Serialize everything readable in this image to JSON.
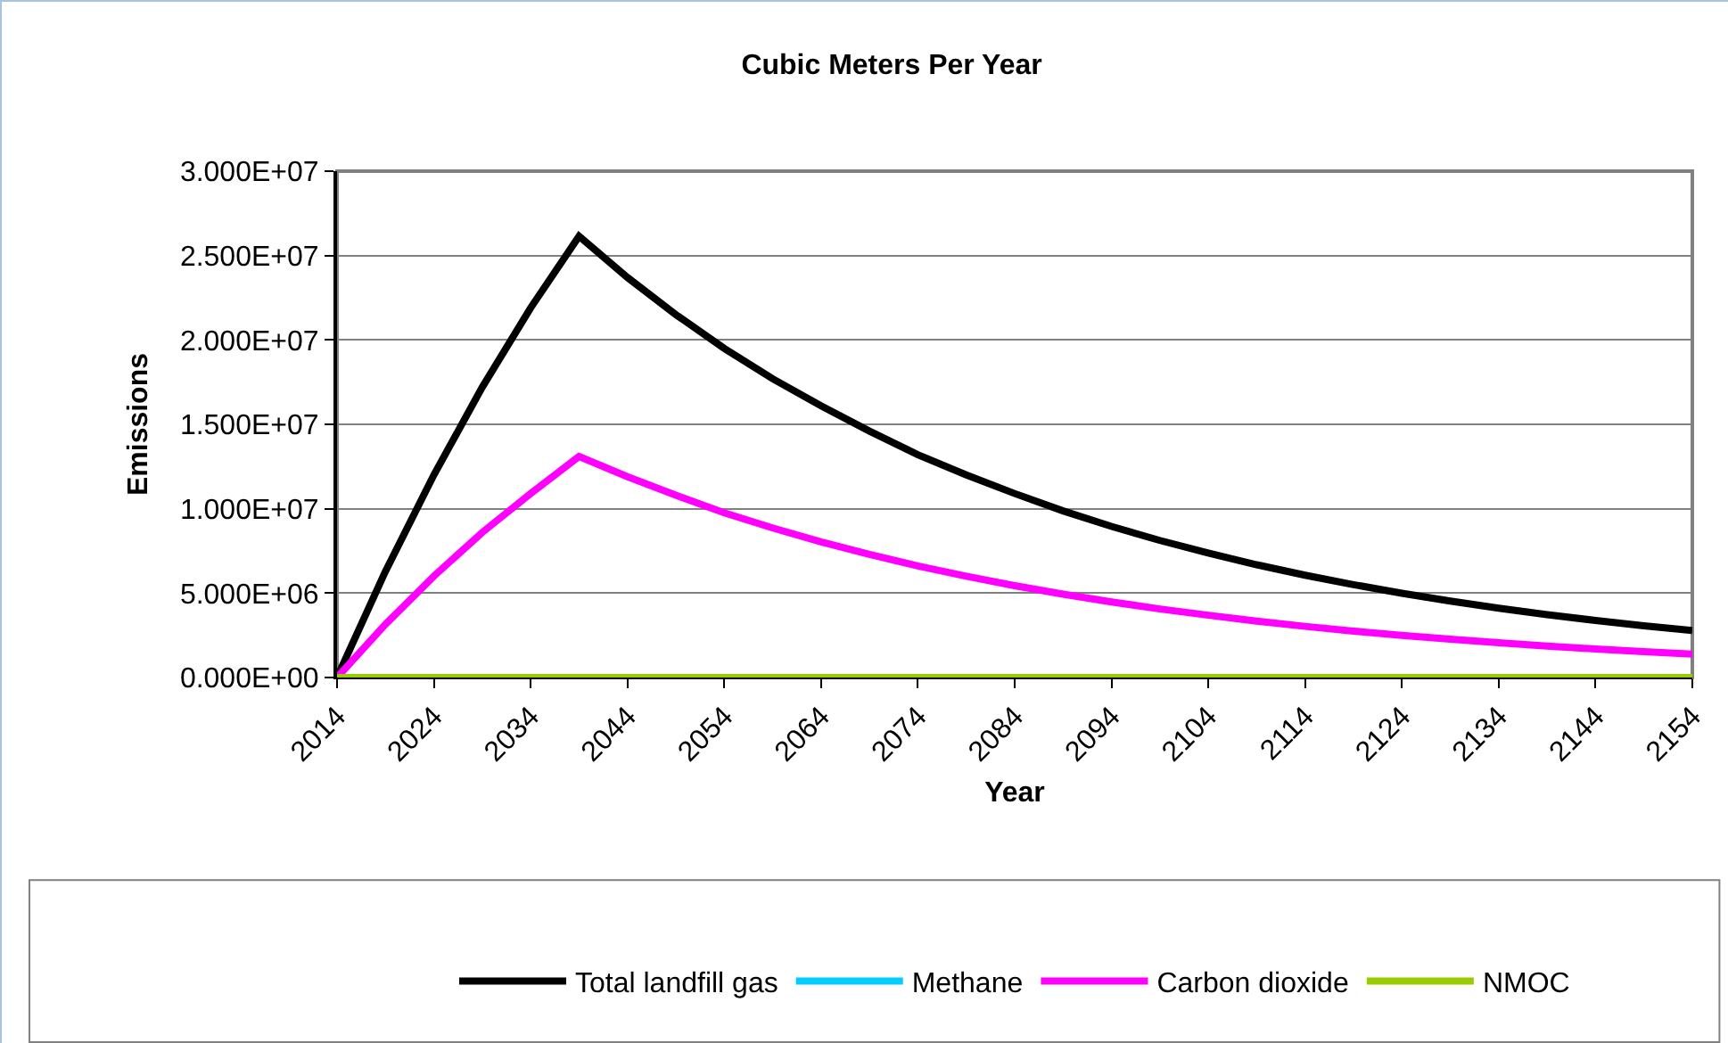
{
  "chart_data": {
    "type": "line",
    "title": "Cubic Meters Per Year",
    "xlabel": "Year",
    "ylabel": "Emissions",
    "x": [
      2014,
      2019,
      2024,
      2029,
      2034,
      2039,
      2044,
      2049,
      2054,
      2059,
      2064,
      2069,
      2074,
      2079,
      2084,
      2089,
      2094,
      2099,
      2104,
      2109,
      2114,
      2119,
      2124,
      2129,
      2134,
      2139,
      2144,
      2149,
      2154
    ],
    "series": [
      {
        "name": "Total landfill gas",
        "color": "#000000",
        "values": [
          0,
          6290000,
          12000000,
          17200000,
          21900000,
          26150000,
          23700000,
          21500000,
          19500000,
          17700000,
          16100000,
          14600000,
          13200000,
          12000000,
          10900000,
          9870000,
          8950000,
          8120000,
          7370000,
          6680000,
          6060000,
          5500000,
          4990000,
          4530000,
          4110000,
          3720000,
          3380000,
          3060000,
          2780000
        ]
      },
      {
        "name": "Methane",
        "color": "#00ccff",
        "values": [
          null,
          null,
          null,
          null,
          null,
          null,
          null,
          null,
          null,
          null,
          null,
          null,
          null,
          null,
          null,
          null,
          null,
          null,
          null,
          null,
          null,
          null,
          null,
          null,
          null,
          null,
          null,
          null,
          null
        ]
      },
      {
        "name": "Carbon dioxide",
        "color": "#ff00ff",
        "values": [
          0,
          3150000,
          6000000,
          8600000,
          10900000,
          13100000,
          11900000,
          10800000,
          9760000,
          8860000,
          8030000,
          7290000,
          6610000,
          6000000,
          5440000,
          4940000,
          4480000,
          4060000,
          3690000,
          3340000,
          3030000,
          2750000,
          2500000,
          2270000,
          2060000,
          1860000,
          1690000,
          1530000,
          1390000
        ]
      },
      {
        "name": "NMOC",
        "color": "#99cc00",
        "values": [
          0,
          0,
          0,
          0,
          0,
          0,
          0,
          0,
          0,
          0,
          0,
          0,
          0,
          0,
          0,
          0,
          0,
          0,
          0,
          0,
          0,
          0,
          0,
          0,
          0,
          0,
          0,
          0,
          0
        ]
      }
    ],
    "xlim": [
      2014,
      2154
    ],
    "xticks": [
      2014,
      2024,
      2034,
      2044,
      2054,
      2064,
      2074,
      2084,
      2094,
      2104,
      2114,
      2124,
      2134,
      2144,
      2154
    ],
    "ylim": [
      0,
      30000000
    ],
    "yticks": [
      {
        "value": 0,
        "label": "0.000E+00"
      },
      {
        "value": 5000000,
        "label": "5.000E+06"
      },
      {
        "value": 10000000,
        "label": "1.000E+07"
      },
      {
        "value": 15000000,
        "label": "1.500E+07"
      },
      {
        "value": 20000000,
        "label": "2.000E+07"
      },
      {
        "value": 25000000,
        "label": "2.500E+07"
      },
      {
        "value": 30000000,
        "label": "3.000E+07"
      }
    ],
    "grid": "y",
    "legend": "bottom",
    "marker": "none",
    "line_style": "solid"
  }
}
